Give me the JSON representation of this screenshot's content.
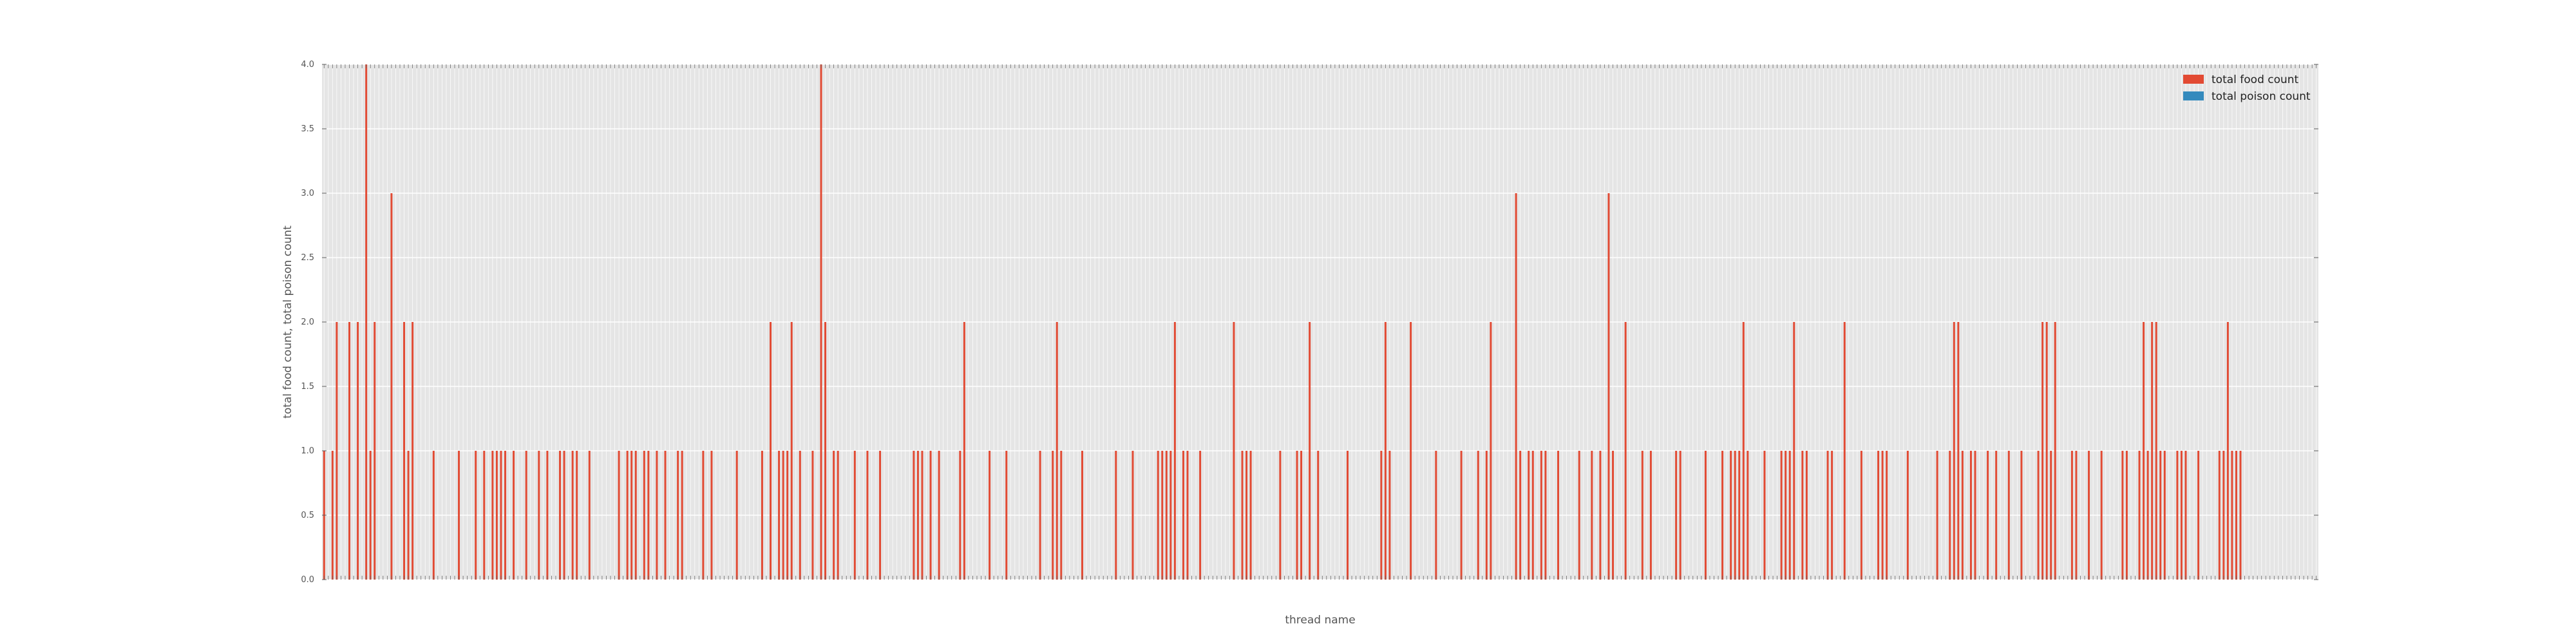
{
  "chart_data": {
    "type": "bar",
    "xlabel": "thread name",
    "ylabel": "total food count, total poison count",
    "ylim": [
      0,
      4.0
    ],
    "yticks": [
      "0.0",
      "0.5",
      "1.0",
      "1.5",
      "2.0",
      "2.5",
      "3.0",
      "3.5",
      "4.0"
    ],
    "grid": true,
    "legend_position": "top-right",
    "series": [
      {
        "name": "total food count",
        "color": "#E24A33",
        "values": [
          1,
          0,
          1,
          2,
          0,
          0,
          2,
          0,
          2,
          0,
          4,
          1,
          2,
          0,
          0,
          0,
          3,
          0,
          0,
          2,
          1,
          2,
          0,
          0,
          0,
          0,
          1,
          0,
          0,
          0,
          0,
          0,
          1,
          0,
          0,
          0,
          1,
          0,
          1,
          0,
          1,
          1,
          1,
          1,
          0,
          1,
          0,
          0,
          1,
          0,
          0,
          1,
          0,
          1,
          0,
          0,
          1,
          1,
          0,
          1,
          1,
          0,
          0,
          1,
          0,
          0,
          0,
          0,
          0,
          0,
          1,
          0,
          1,
          1,
          1,
          0,
          1,
          1,
          0,
          1,
          0,
          1,
          0,
          0,
          1,
          1,
          0,
          0,
          0,
          0,
          1,
          0,
          1,
          0,
          0,
          0,
          0,
          0,
          1,
          0,
          0,
          0,
          0,
          0,
          1,
          0,
          2,
          0,
          1,
          1,
          1,
          2,
          0,
          1,
          0,
          0,
          1,
          0,
          4,
          2,
          0,
          1,
          1,
          0,
          0,
          0,
          1,
          0,
          0,
          1,
          0,
          0,
          1,
          0,
          0,
          0,
          0,
          0,
          0,
          0,
          1,
          1,
          1,
          0,
          1,
          0,
          1,
          0,
          0,
          0,
          0,
          1,
          2,
          0,
          0,
          0,
          0,
          0,
          1,
          0,
          0,
          0,
          1,
          0,
          0,
          0,
          0,
          0,
          0,
          0,
          1,
          0,
          0,
          1,
          2,
          1,
          0,
          0,
          0,
          0,
          1,
          0,
          0,
          0,
          0,
          0,
          0,
          0,
          1,
          0,
          0,
          0,
          1,
          0,
          0,
          0,
          0,
          0,
          1,
          1,
          1,
          1,
          2,
          0,
          1,
          1,
          0,
          0,
          1,
          0,
          0,
          0,
          0,
          0,
          0,
          0,
          2,
          0,
          1,
          1,
          1,
          0,
          0,
          0,
          0,
          0,
          0,
          1,
          0,
          0,
          0,
          1,
          1,
          0,
          2,
          0,
          1,
          0,
          0,
          0,
          0,
          0,
          0,
          1,
          0,
          0,
          0,
          0,
          0,
          0,
          0,
          1,
          2,
          1,
          0,
          0,
          0,
          0,
          2,
          0,
          0,
          0,
          0,
          0,
          1,
          0,
          0,
          0,
          0,
          0,
          1,
          0,
          0,
          0,
          1,
          0,
          1,
          2,
          0,
          0,
          0,
          0,
          0,
          3,
          1,
          0,
          1,
          1,
          0,
          1,
          1,
          0,
          0,
          1,
          0,
          0,
          0,
          0,
          1,
          0,
          0,
          1,
          0,
          1,
          0,
          3,
          1,
          0,
          0,
          2,
          0,
          0,
          0,
          1,
          0,
          1,
          0,
          0,
          0,
          0,
          0,
          1,
          1,
          0,
          0,
          0,
          0,
          0,
          1,
          0,
          0,
          0,
          1,
          0,
          1,
          1,
          1,
          2,
          1,
          0,
          0,
          0,
          1,
          0,
          0,
          0,
          1,
          1,
          1,
          2,
          0,
          1,
          1,
          0,
          0,
          0,
          0,
          1,
          1,
          0,
          0,
          2,
          0,
          0,
          0,
          1,
          0,
          0,
          0,
          1,
          1,
          1,
          0,
          0,
          0,
          0,
          1,
          0,
          0,
          0,
          0,
          0,
          0,
          1,
          0,
          0,
          1,
          2,
          2,
          1,
          0,
          1,
          1,
          0,
          0,
          1,
          0,
          1,
          0,
          0,
          1,
          0,
          0,
          1,
          0,
          0,
          0,
          1,
          2,
          2,
          1,
          2,
          0,
          0,
          0,
          1,
          1,
          0,
          0,
          1,
          0,
          0,
          1,
          0,
          0,
          0,
          0,
          1,
          1,
          0,
          0,
          1,
          2,
          1,
          2,
          2,
          1,
          1,
          0,
          0,
          1,
          1,
          1,
          0,
          0,
          1,
          0,
          0,
          0,
          0,
          1,
          1,
          2,
          1,
          1,
          1,
          0,
          0,
          0,
          0,
          0,
          0,
          0,
          0,
          0,
          0,
          0,
          0,
          0,
          0,
          0,
          0,
          0,
          0
        ]
      },
      {
        "name": "total poison count",
        "color": "#348ABD",
        "values": []
      }
    ]
  }
}
